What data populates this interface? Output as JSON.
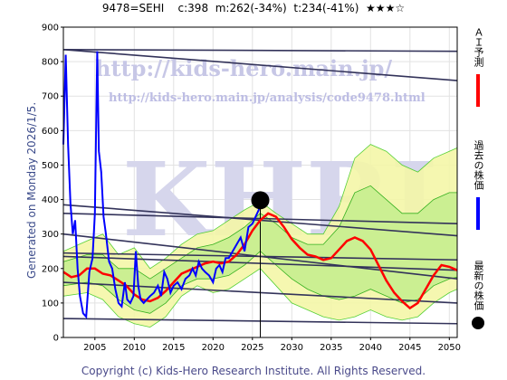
{
  "header": {
    "code": "9478=SEHI",
    "current": "c:398",
    "medium": "m:262(-34%)",
    "target": "t:234(-41%)",
    "stars": "★★★☆"
  },
  "generated_label": "Generated on Monday 2026/1/5.",
  "footer": "Copyright (c) Kids-Hero Research Institute. All Rights Reserved.",
  "watermarks": {
    "url_main": "http://kids-hero.main.jp/",
    "url_analysis": "http://kids-hero.main.jp/analysis/code9478.html",
    "big": "KHRI"
  },
  "legend": [
    {
      "label": "ＡＩ予測",
      "color": "#ff0000"
    },
    {
      "label": "過去の株価",
      "color": "#0000ff"
    },
    {
      "label": "最新の株価",
      "color": "#000000"
    }
  ],
  "chart_data": {
    "type": "line",
    "xlim": [
      2001,
      2051
    ],
    "ylim": [
      0,
      900
    ],
    "x_ticks": [
      2005,
      2010,
      2015,
      2020,
      2025,
      2030,
      2035,
      2040,
      2045,
      2050
    ],
    "y_ticks": [
      0,
      100,
      200,
      300,
      400,
      500,
      600,
      700,
      800,
      900
    ],
    "grid": true,
    "latest_point": {
      "x": 2026.0,
      "y": 398
    },
    "past_price": [
      [
        2001.0,
        560
      ],
      [
        2001.3,
        820
      ],
      [
        2001.6,
        560
      ],
      [
        2001.9,
        390
      ],
      [
        2002.2,
        300
      ],
      [
        2002.5,
        340
      ],
      [
        2002.8,
        200
      ],
      [
        2003.1,
        120
      ],
      [
        2003.5,
        70
      ],
      [
        2003.9,
        60
      ],
      [
        2004.3,
        190
      ],
      [
        2004.7,
        230
      ],
      [
        2005.0,
        360
      ],
      [
        2005.3,
        830
      ],
      [
        2005.5,
        540
      ],
      [
        2005.8,
        480
      ],
      [
        2006.1,
        350
      ],
      [
        2006.4,
        300
      ],
      [
        2006.8,
        220
      ],
      [
        2007.2,
        200
      ],
      [
        2007.6,
        140
      ],
      [
        2008.0,
        100
      ],
      [
        2008.4,
        90
      ],
      [
        2008.8,
        160
      ],
      [
        2009.1,
        110
      ],
      [
        2009.5,
        100
      ],
      [
        2009.9,
        120
      ],
      [
        2010.2,
        250
      ],
      [
        2010.5,
        150
      ],
      [
        2010.8,
        110
      ],
      [
        2011.2,
        100
      ],
      [
        2011.6,
        110
      ],
      [
        2012.0,
        120
      ],
      [
        2012.5,
        130
      ],
      [
        2013.0,
        150
      ],
      [
        2013.4,
        120
      ],
      [
        2013.8,
        190
      ],
      [
        2014.2,
        170
      ],
      [
        2014.6,
        130
      ],
      [
        2015.0,
        150
      ],
      [
        2015.5,
        160
      ],
      [
        2016.0,
        140
      ],
      [
        2016.5,
        170
      ],
      [
        2017.0,
        180
      ],
      [
        2017.4,
        200
      ],
      [
        2017.8,
        180
      ],
      [
        2018.2,
        220
      ],
      [
        2018.6,
        200
      ],
      [
        2019.0,
        190
      ],
      [
        2019.5,
        180
      ],
      [
        2020.0,
        160
      ],
      [
        2020.4,
        200
      ],
      [
        2020.8,
        210
      ],
      [
        2021.2,
        190
      ],
      [
        2021.6,
        230
      ],
      [
        2022.0,
        230
      ],
      [
        2022.5,
        250
      ],
      [
        2023.0,
        270
      ],
      [
        2023.5,
        290
      ],
      [
        2024.0,
        250
      ],
      [
        2024.5,
        320
      ],
      [
        2025.0,
        330
      ],
      [
        2025.4,
        350
      ],
      [
        2025.8,
        370
      ],
      [
        2026.0,
        398
      ]
    ],
    "ai_forecast": [
      [
        2001.0,
        190
      ],
      [
        2002.0,
        175
      ],
      [
        2003.0,
        180
      ],
      [
        2004.0,
        200
      ],
      [
        2005.0,
        200
      ],
      [
        2006.0,
        185
      ],
      [
        2007.0,
        180
      ],
      [
        2008.0,
        165
      ],
      [
        2009.0,
        150
      ],
      [
        2010.0,
        125
      ],
      [
        2011.0,
        110
      ],
      [
        2012.0,
        105
      ],
      [
        2013.0,
        115
      ],
      [
        2014.0,
        135
      ],
      [
        2015.0,
        160
      ],
      [
        2016.0,
        185
      ],
      [
        2017.0,
        195
      ],
      [
        2018.0,
        205
      ],
      [
        2019.0,
        215
      ],
      [
        2020.0,
        220
      ],
      [
        2021.0,
        215
      ],
      [
        2022.0,
        220
      ],
      [
        2023.0,
        240
      ],
      [
        2024.0,
        270
      ],
      [
        2025.0,
        310
      ],
      [
        2026.0,
        340
      ],
      [
        2027.0,
        360
      ],
      [
        2028.0,
        350
      ],
      [
        2029.0,
        320
      ],
      [
        2030.0,
        285
      ],
      [
        2031.0,
        260
      ],
      [
        2032.0,
        240
      ],
      [
        2033.0,
        235
      ],
      [
        2034.0,
        225
      ],
      [
        2035.0,
        230
      ],
      [
        2036.0,
        255
      ],
      [
        2037.0,
        280
      ],
      [
        2038.0,
        290
      ],
      [
        2039.0,
        280
      ],
      [
        2040.0,
        255
      ],
      [
        2041.0,
        210
      ],
      [
        2042.0,
        165
      ],
      [
        2043.0,
        130
      ],
      [
        2044.0,
        105
      ],
      [
        2045.0,
        85
      ],
      [
        2046.0,
        100
      ],
      [
        2047.0,
        140
      ],
      [
        2048.0,
        180
      ],
      [
        2049.0,
        210
      ],
      [
        2050.0,
        205
      ],
      [
        2051.0,
        195
      ]
    ],
    "band_outer": {
      "upper": [
        [
          2001,
          250
        ],
        [
          2004,
          280
        ],
        [
          2006,
          300
        ],
        [
          2008,
          240
        ],
        [
          2010,
          260
        ],
        [
          2012,
          200
        ],
        [
          2014,
          230
        ],
        [
          2016,
          270
        ],
        [
          2018,
          300
        ],
        [
          2020,
          310
        ],
        [
          2022,
          340
        ],
        [
          2024,
          370
        ],
        [
          2026,
          395
        ],
        [
          2028,
          360
        ],
        [
          2030,
          330
        ],
        [
          2032,
          300
        ],
        [
          2034,
          300
        ],
        [
          2036,
          380
        ],
        [
          2038,
          520
        ],
        [
          2040,
          560
        ],
        [
          2042,
          540
        ],
        [
          2044,
          500
        ],
        [
          2046,
          480
        ],
        [
          2048,
          520
        ],
        [
          2050,
          540
        ],
        [
          2051,
          550
        ]
      ],
      "lower": [
        [
          2001,
          120
        ],
        [
          2004,
          130
        ],
        [
          2006,
          110
        ],
        [
          2008,
          60
        ],
        [
          2010,
          40
        ],
        [
          2012,
          30
        ],
        [
          2014,
          60
        ],
        [
          2016,
          120
        ],
        [
          2018,
          150
        ],
        [
          2020,
          130
        ],
        [
          2022,
          140
        ],
        [
          2024,
          170
        ],
        [
          2026,
          200
        ],
        [
          2028,
          150
        ],
        [
          2030,
          100
        ],
        [
          2032,
          80
        ],
        [
          2034,
          60
        ],
        [
          2036,
          50
        ],
        [
          2038,
          60
        ],
        [
          2040,
          80
        ],
        [
          2042,
          60
        ],
        [
          2044,
          50
        ],
        [
          2046,
          60
        ],
        [
          2048,
          100
        ],
        [
          2050,
          130
        ],
        [
          2051,
          140
        ]
      ]
    },
    "band_inner": {
      "upper": [
        [
          2001,
          220
        ],
        [
          2004,
          240
        ],
        [
          2006,
          240
        ],
        [
          2008,
          200
        ],
        [
          2010,
          200
        ],
        [
          2012,
          170
        ],
        [
          2014,
          200
        ],
        [
          2016,
          230
        ],
        [
          2018,
          260
        ],
        [
          2020,
          270
        ],
        [
          2022,
          290
        ],
        [
          2024,
          320
        ],
        [
          2026,
          360
        ],
        [
          2028,
          330
        ],
        [
          2030,
          290
        ],
        [
          2032,
          270
        ],
        [
          2034,
          270
        ],
        [
          2036,
          320
        ],
        [
          2038,
          420
        ],
        [
          2040,
          440
        ],
        [
          2042,
          400
        ],
        [
          2044,
          360
        ],
        [
          2046,
          360
        ],
        [
          2048,
          400
        ],
        [
          2050,
          420
        ],
        [
          2051,
          420
        ]
      ],
      "lower": [
        [
          2001,
          150
        ],
        [
          2004,
          160
        ],
        [
          2006,
          150
        ],
        [
          2008,
          110
        ],
        [
          2010,
          80
        ],
        [
          2012,
          70
        ],
        [
          2014,
          100
        ],
        [
          2016,
          150
        ],
        [
          2018,
          170
        ],
        [
          2020,
          170
        ],
        [
          2022,
          180
        ],
        [
          2024,
          210
        ],
        [
          2026,
          250
        ],
        [
          2028,
          210
        ],
        [
          2030,
          170
        ],
        [
          2032,
          140
        ],
        [
          2034,
          120
        ],
        [
          2036,
          110
        ],
        [
          2038,
          120
        ],
        [
          2040,
          140
        ],
        [
          2042,
          120
        ],
        [
          2044,
          100
        ],
        [
          2046,
          110
        ],
        [
          2048,
          150
        ],
        [
          2050,
          170
        ],
        [
          2051,
          175
        ]
      ]
    },
    "trend_lines": [
      {
        "from": [
          2001,
          835
        ],
        "to": [
          2051,
          830
        ]
      },
      {
        "from": [
          2001,
          835
        ],
        "to": [
          2051,
          745
        ]
      },
      {
        "from": [
          2001,
          385
        ],
        "to": [
          2051,
          295
        ]
      },
      {
        "from": [
          2001,
          360
        ],
        "to": [
          2051,
          330
        ]
      },
      {
        "from": [
          2001,
          300
        ],
        "to": [
          2051,
          170
        ]
      },
      {
        "from": [
          2001,
          245
        ],
        "to": [
          2051,
          225
        ]
      },
      {
        "from": [
          2001,
          235
        ],
        "to": [
          2051,
          195
        ]
      },
      {
        "from": [
          2001,
          160
        ],
        "to": [
          2051,
          100
        ]
      },
      {
        "from": [
          2001,
          55
        ],
        "to": [
          2051,
          40
        ]
      }
    ]
  }
}
